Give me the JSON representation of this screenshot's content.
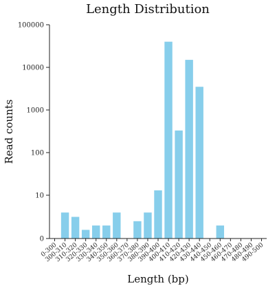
{
  "chart_data": {
    "type": "bar",
    "title": "Length Distribution",
    "xlabel": "Length (bp)",
    "ylabel": "Read counts",
    "yscale": "log",
    "yticks": [
      {
        "value": 0,
        "label": "0"
      },
      {
        "value": 10,
        "label": "10"
      },
      {
        "value": 100,
        "label": "100"
      },
      {
        "value": 1000,
        "label": "1000"
      },
      {
        "value": 10000,
        "label": "10000"
      },
      {
        "value": 100000,
        "label": "100000"
      }
    ],
    "categories": [
      "0-300",
      "300-310",
      "310-320",
      "320-330",
      "330-340",
      "340-350",
      "350-360",
      "360-370",
      "370-380",
      "380-390",
      "390-400",
      "400-410",
      "410-420",
      "420-430",
      "430-440",
      "440-450",
      "450-460",
      "460-470",
      "470-480",
      "480-490",
      "490-500"
    ],
    "values": [
      0,
      6,
      5,
      2,
      3,
      3,
      6,
      0,
      4,
      6,
      13,
      40000,
      330,
      15000,
      3500,
      0,
      3,
      0,
      0,
      0,
      0
    ],
    "bar_color": "#87CEEB",
    "grid": false
  }
}
